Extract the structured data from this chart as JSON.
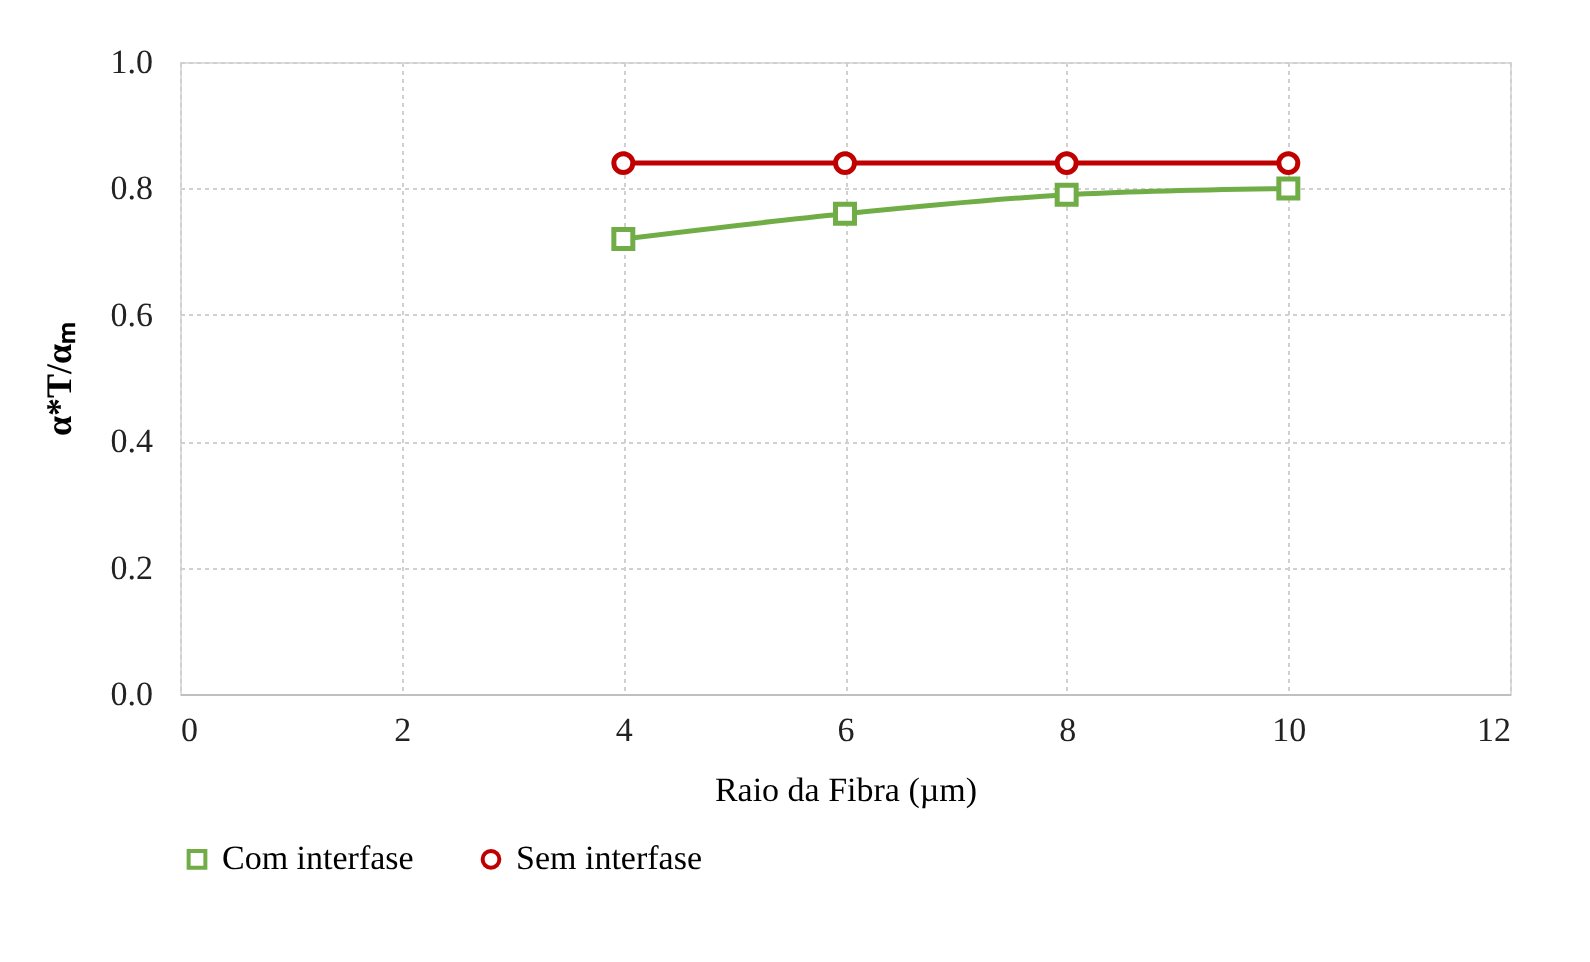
{
  "chart_data": {
    "type": "line",
    "xlabel": "Raio da Fibra (µm)",
    "ylabel": "α*T/αₘ",
    "x": [
      4,
      6,
      8,
      10
    ],
    "series": [
      {
        "name": "Com interfase",
        "color": "#70ad47",
        "marker": "square",
        "values": [
          0.72,
          0.76,
          0.79,
          0.8
        ]
      },
      {
        "name": "Sem interfase",
        "color": "#c00000",
        "marker": "circle",
        "values": [
          0.84,
          0.84,
          0.84,
          0.84
        ]
      }
    ],
    "xlim": [
      0,
      12
    ],
    "xticks": [
      0,
      2,
      4,
      6,
      8,
      10,
      12
    ],
    "ylim": [
      0,
      1
    ],
    "yticks": [
      {
        "value": 0,
        "label": "0.0"
      },
      0.2,
      0.4,
      0.6,
      0.8,
      {
        "value": 1,
        "label": "1.0"
      }
    ],
    "grid": true,
    "legend": "bottom",
    "line_style": "solid"
  }
}
